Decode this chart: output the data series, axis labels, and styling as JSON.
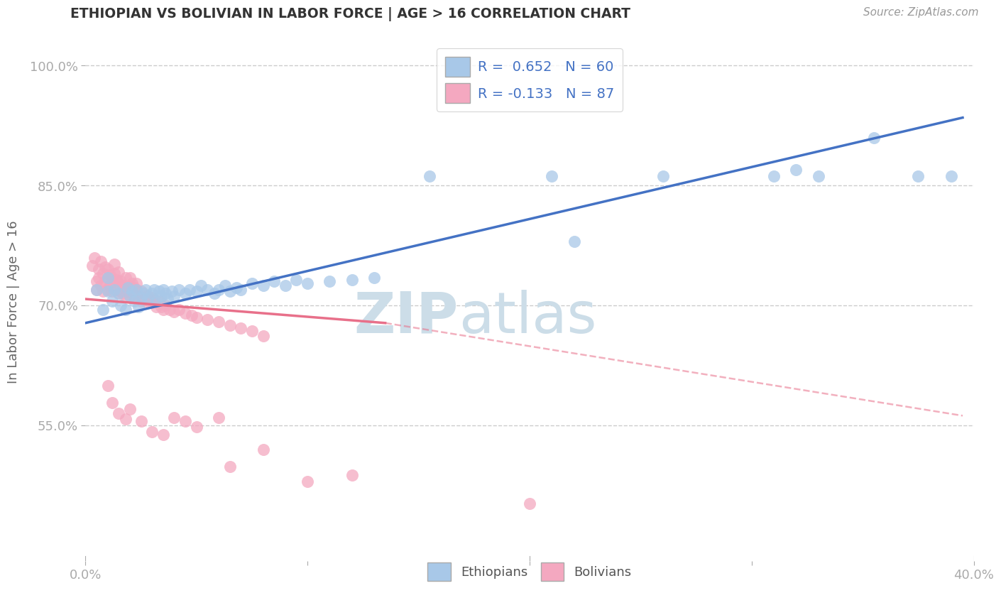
{
  "title": "ETHIOPIAN VS BOLIVIAN IN LABOR FORCE | AGE > 16 CORRELATION CHART",
  "source": "Source: ZipAtlas.com",
  "xlabel": "",
  "ylabel": "In Labor Force | Age > 16",
  "xlim": [
    0.0,
    0.4
  ],
  "ylim": [
    0.38,
    1.03
  ],
  "xticks": [
    0.0,
    0.1,
    0.2,
    0.3,
    0.4
  ],
  "xticklabels": [
    "0.0%",
    "",
    "",
    "",
    "40.0%"
  ],
  "yticks": [
    0.55,
    0.7,
    0.85,
    1.0
  ],
  "yticklabels": [
    "55.0%",
    "70.0%",
    "85.0%",
    "100.0%"
  ],
  "r_ethiopian": 0.652,
  "n_ethiopian": 60,
  "r_bolivian": -0.133,
  "n_bolivian": 87,
  "color_ethiopian": "#a8c8e8",
  "color_bolivian": "#f4a8c0",
  "color_line_ethiopian": "#4472c4",
  "color_line_bolivian": "#e8708a",
  "watermark_zip": "ZIP",
  "watermark_atlas": "atlas",
  "watermark_color": "#ccdde8",
  "background_color": "#ffffff",
  "eth_line_x0": 0.0,
  "eth_line_y0": 0.678,
  "eth_line_x1": 0.395,
  "eth_line_y1": 0.935,
  "bol_line_x0": 0.0,
  "bol_line_y0": 0.708,
  "bol_line_x1_solid": 0.135,
  "bol_line_y1_solid": 0.678,
  "bol_line_x1_dash": 0.395,
  "bol_line_y1_dash": 0.562,
  "ethiopian_points": [
    [
      0.005,
      0.72
    ],
    [
      0.008,
      0.695
    ],
    [
      0.01,
      0.718
    ],
    [
      0.01,
      0.735
    ],
    [
      0.012,
      0.705
    ],
    [
      0.013,
      0.72
    ],
    [
      0.015,
      0.715
    ],
    [
      0.016,
      0.7
    ],
    [
      0.018,
      0.695
    ],
    [
      0.019,
      0.722
    ],
    [
      0.02,
      0.712
    ],
    [
      0.021,
      0.718
    ],
    [
      0.022,
      0.705
    ],
    [
      0.023,
      0.72
    ],
    [
      0.024,
      0.698
    ],
    [
      0.025,
      0.71
    ],
    [
      0.026,
      0.715
    ],
    [
      0.027,
      0.72
    ],
    [
      0.028,
      0.708
    ],
    [
      0.03,
      0.715
    ],
    [
      0.031,
      0.72
    ],
    [
      0.032,
      0.705
    ],
    [
      0.033,
      0.718
    ],
    [
      0.034,
      0.712
    ],
    [
      0.035,
      0.72
    ],
    [
      0.036,
      0.715
    ],
    [
      0.037,
      0.708
    ],
    [
      0.039,
      0.718
    ],
    [
      0.04,
      0.712
    ],
    [
      0.042,
      0.72
    ],
    [
      0.045,
      0.715
    ],
    [
      0.047,
      0.72
    ],
    [
      0.05,
      0.718
    ],
    [
      0.052,
      0.725
    ],
    [
      0.055,
      0.72
    ],
    [
      0.058,
      0.715
    ],
    [
      0.06,
      0.72
    ],
    [
      0.063,
      0.725
    ],
    [
      0.065,
      0.718
    ],
    [
      0.068,
      0.722
    ],
    [
      0.07,
      0.72
    ],
    [
      0.075,
      0.728
    ],
    [
      0.08,
      0.725
    ],
    [
      0.085,
      0.73
    ],
    [
      0.09,
      0.725
    ],
    [
      0.095,
      0.732
    ],
    [
      0.1,
      0.728
    ],
    [
      0.11,
      0.73
    ],
    [
      0.12,
      0.732
    ],
    [
      0.13,
      0.735
    ],
    [
      0.155,
      0.862
    ],
    [
      0.21,
      0.862
    ],
    [
      0.22,
      0.78
    ],
    [
      0.26,
      0.862
    ],
    [
      0.31,
      0.862
    ],
    [
      0.32,
      0.87
    ],
    [
      0.33,
      0.862
    ],
    [
      0.355,
      0.91
    ],
    [
      0.375,
      0.862
    ],
    [
      0.39,
      0.862
    ]
  ],
  "bolivian_points": [
    [
      0.003,
      0.75
    ],
    [
      0.004,
      0.76
    ],
    [
      0.005,
      0.73
    ],
    [
      0.005,
      0.72
    ],
    [
      0.006,
      0.735
    ],
    [
      0.006,
      0.745
    ],
    [
      0.007,
      0.725
    ],
    [
      0.007,
      0.755
    ],
    [
      0.008,
      0.718
    ],
    [
      0.008,
      0.74
    ],
    [
      0.009,
      0.73
    ],
    [
      0.009,
      0.748
    ],
    [
      0.01,
      0.72
    ],
    [
      0.01,
      0.735
    ],
    [
      0.01,
      0.745
    ],
    [
      0.011,
      0.725
    ],
    [
      0.011,
      0.738
    ],
    [
      0.012,
      0.718
    ],
    [
      0.012,
      0.73
    ],
    [
      0.013,
      0.725
    ],
    [
      0.013,
      0.74
    ],
    [
      0.013,
      0.752
    ],
    [
      0.014,
      0.72
    ],
    [
      0.014,
      0.732
    ],
    [
      0.015,
      0.715
    ],
    [
      0.015,
      0.728
    ],
    [
      0.015,
      0.742
    ],
    [
      0.016,
      0.718
    ],
    [
      0.016,
      0.73
    ],
    [
      0.017,
      0.715
    ],
    [
      0.017,
      0.725
    ],
    [
      0.018,
      0.712
    ],
    [
      0.018,
      0.722
    ],
    [
      0.018,
      0.735
    ],
    [
      0.019,
      0.718
    ],
    [
      0.02,
      0.712
    ],
    [
      0.02,
      0.724
    ],
    [
      0.02,
      0.735
    ],
    [
      0.021,
      0.718
    ],
    [
      0.021,
      0.728
    ],
    [
      0.022,
      0.712
    ],
    [
      0.022,
      0.722
    ],
    [
      0.023,
      0.718
    ],
    [
      0.023,
      0.728
    ],
    [
      0.024,
      0.712
    ],
    [
      0.025,
      0.705
    ],
    [
      0.025,
      0.718
    ],
    [
      0.026,
      0.71
    ],
    [
      0.027,
      0.705
    ],
    [
      0.028,
      0.712
    ],
    [
      0.029,
      0.705
    ],
    [
      0.03,
      0.71
    ],
    [
      0.031,
      0.705
    ],
    [
      0.032,
      0.698
    ],
    [
      0.033,
      0.705
    ],
    [
      0.034,
      0.698
    ],
    [
      0.035,
      0.695
    ],
    [
      0.036,
      0.7
    ],
    [
      0.038,
      0.695
    ],
    [
      0.04,
      0.692
    ],
    [
      0.042,
      0.695
    ],
    [
      0.045,
      0.69
    ],
    [
      0.048,
      0.688
    ],
    [
      0.05,
      0.685
    ],
    [
      0.055,
      0.682
    ],
    [
      0.06,
      0.68
    ],
    [
      0.065,
      0.675
    ],
    [
      0.07,
      0.672
    ],
    [
      0.075,
      0.668
    ],
    [
      0.08,
      0.662
    ],
    [
      0.01,
      0.6
    ],
    [
      0.012,
      0.578
    ],
    [
      0.015,
      0.565
    ],
    [
      0.018,
      0.558
    ],
    [
      0.02,
      0.57
    ],
    [
      0.025,
      0.555
    ],
    [
      0.03,
      0.542
    ],
    [
      0.035,
      0.538
    ],
    [
      0.04,
      0.56
    ],
    [
      0.045,
      0.555
    ],
    [
      0.05,
      0.548
    ],
    [
      0.06,
      0.56
    ],
    [
      0.065,
      0.498
    ],
    [
      0.08,
      0.52
    ],
    [
      0.1,
      0.48
    ],
    [
      0.12,
      0.488
    ],
    [
      0.2,
      0.452
    ]
  ]
}
